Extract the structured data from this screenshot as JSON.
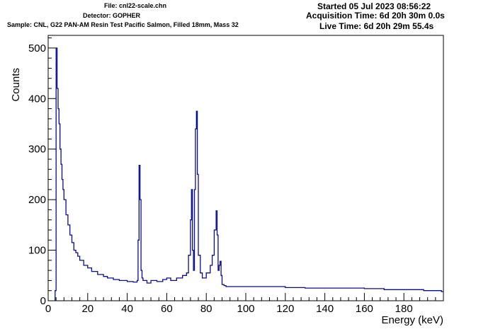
{
  "header": {
    "file": "File: cnl22-scale.chn",
    "detector": "Detector: GOPHER",
    "sample": "Sample: CNL, G22 PAN-AM Resin Test Pacific Salmon, Filled 18mm, Mass 32",
    "started": "Started 05 Jul 2023 08:56:22",
    "acquisition_time": "Acquisition Time: 6d 20h 30m 0.0s",
    "live_time": "Live Time: 6d 20h 29m 55.4s"
  },
  "colors": {
    "series": "#0b0b8f",
    "axis": "#000000",
    "background": "#ffffff"
  },
  "chart_data": {
    "type": "line",
    "style": "step histogram",
    "xlabel": "Energy (keV)",
    "ylabel": "Counts",
    "xlim": [
      0,
      200
    ],
    "ylim": [
      0,
      525
    ],
    "x_ticks": [
      0,
      20,
      40,
      60,
      80,
      100,
      120,
      140,
      160,
      180
    ],
    "y_ticks": [
      0,
      100,
      200,
      300,
      400,
      500
    ],
    "grid": false,
    "legend": "none",
    "series": [
      {
        "x": [
          3.5,
          4,
          4.5,
          5,
          5.5,
          6,
          6.5,
          7,
          7.5,
          8,
          9,
          10,
          11,
          12,
          13,
          14,
          15,
          16,
          18,
          20,
          22,
          25,
          28,
          30,
          33,
          36,
          40,
          43,
          45,
          45.5,
          46,
          46.5,
          47,
          47.5,
          48,
          50,
          52,
          55,
          58,
          60,
          62,
          65,
          68,
          70,
          71,
          72,
          72.5,
          73,
          73.5,
          74,
          74.5,
          75,
          75.5,
          76,
          77,
          78,
          80,
          82,
          83,
          84,
          85,
          85.5,
          86,
          86.5,
          87,
          87.5,
          88,
          89,
          90,
          95,
          100,
          110,
          120,
          130,
          140,
          150,
          160,
          170,
          180,
          190,
          199
        ],
        "y": [
          20,
          500,
          420,
          380,
          350,
          300,
          270,
          240,
          220,
          200,
          170,
          150,
          130,
          115,
          100,
          95,
          88,
          80,
          70,
          65,
          58,
          52,
          48,
          45,
          42,
          40,
          38,
          37,
          40,
          120,
          268,
          200,
          60,
          45,
          40,
          35,
          40,
          38,
          42,
          45,
          40,
          45,
          50,
          55,
          90,
          160,
          220,
          100,
          60,
          220,
          340,
          375,
          250,
          90,
          55,
          45,
          55,
          70,
          90,
          140,
          178,
          130,
          60,
          70,
          78,
          50,
          32,
          30,
          28,
          28,
          28,
          28,
          26,
          25,
          25,
          25,
          24,
          22,
          22,
          20,
          18
        ]
      }
    ]
  }
}
